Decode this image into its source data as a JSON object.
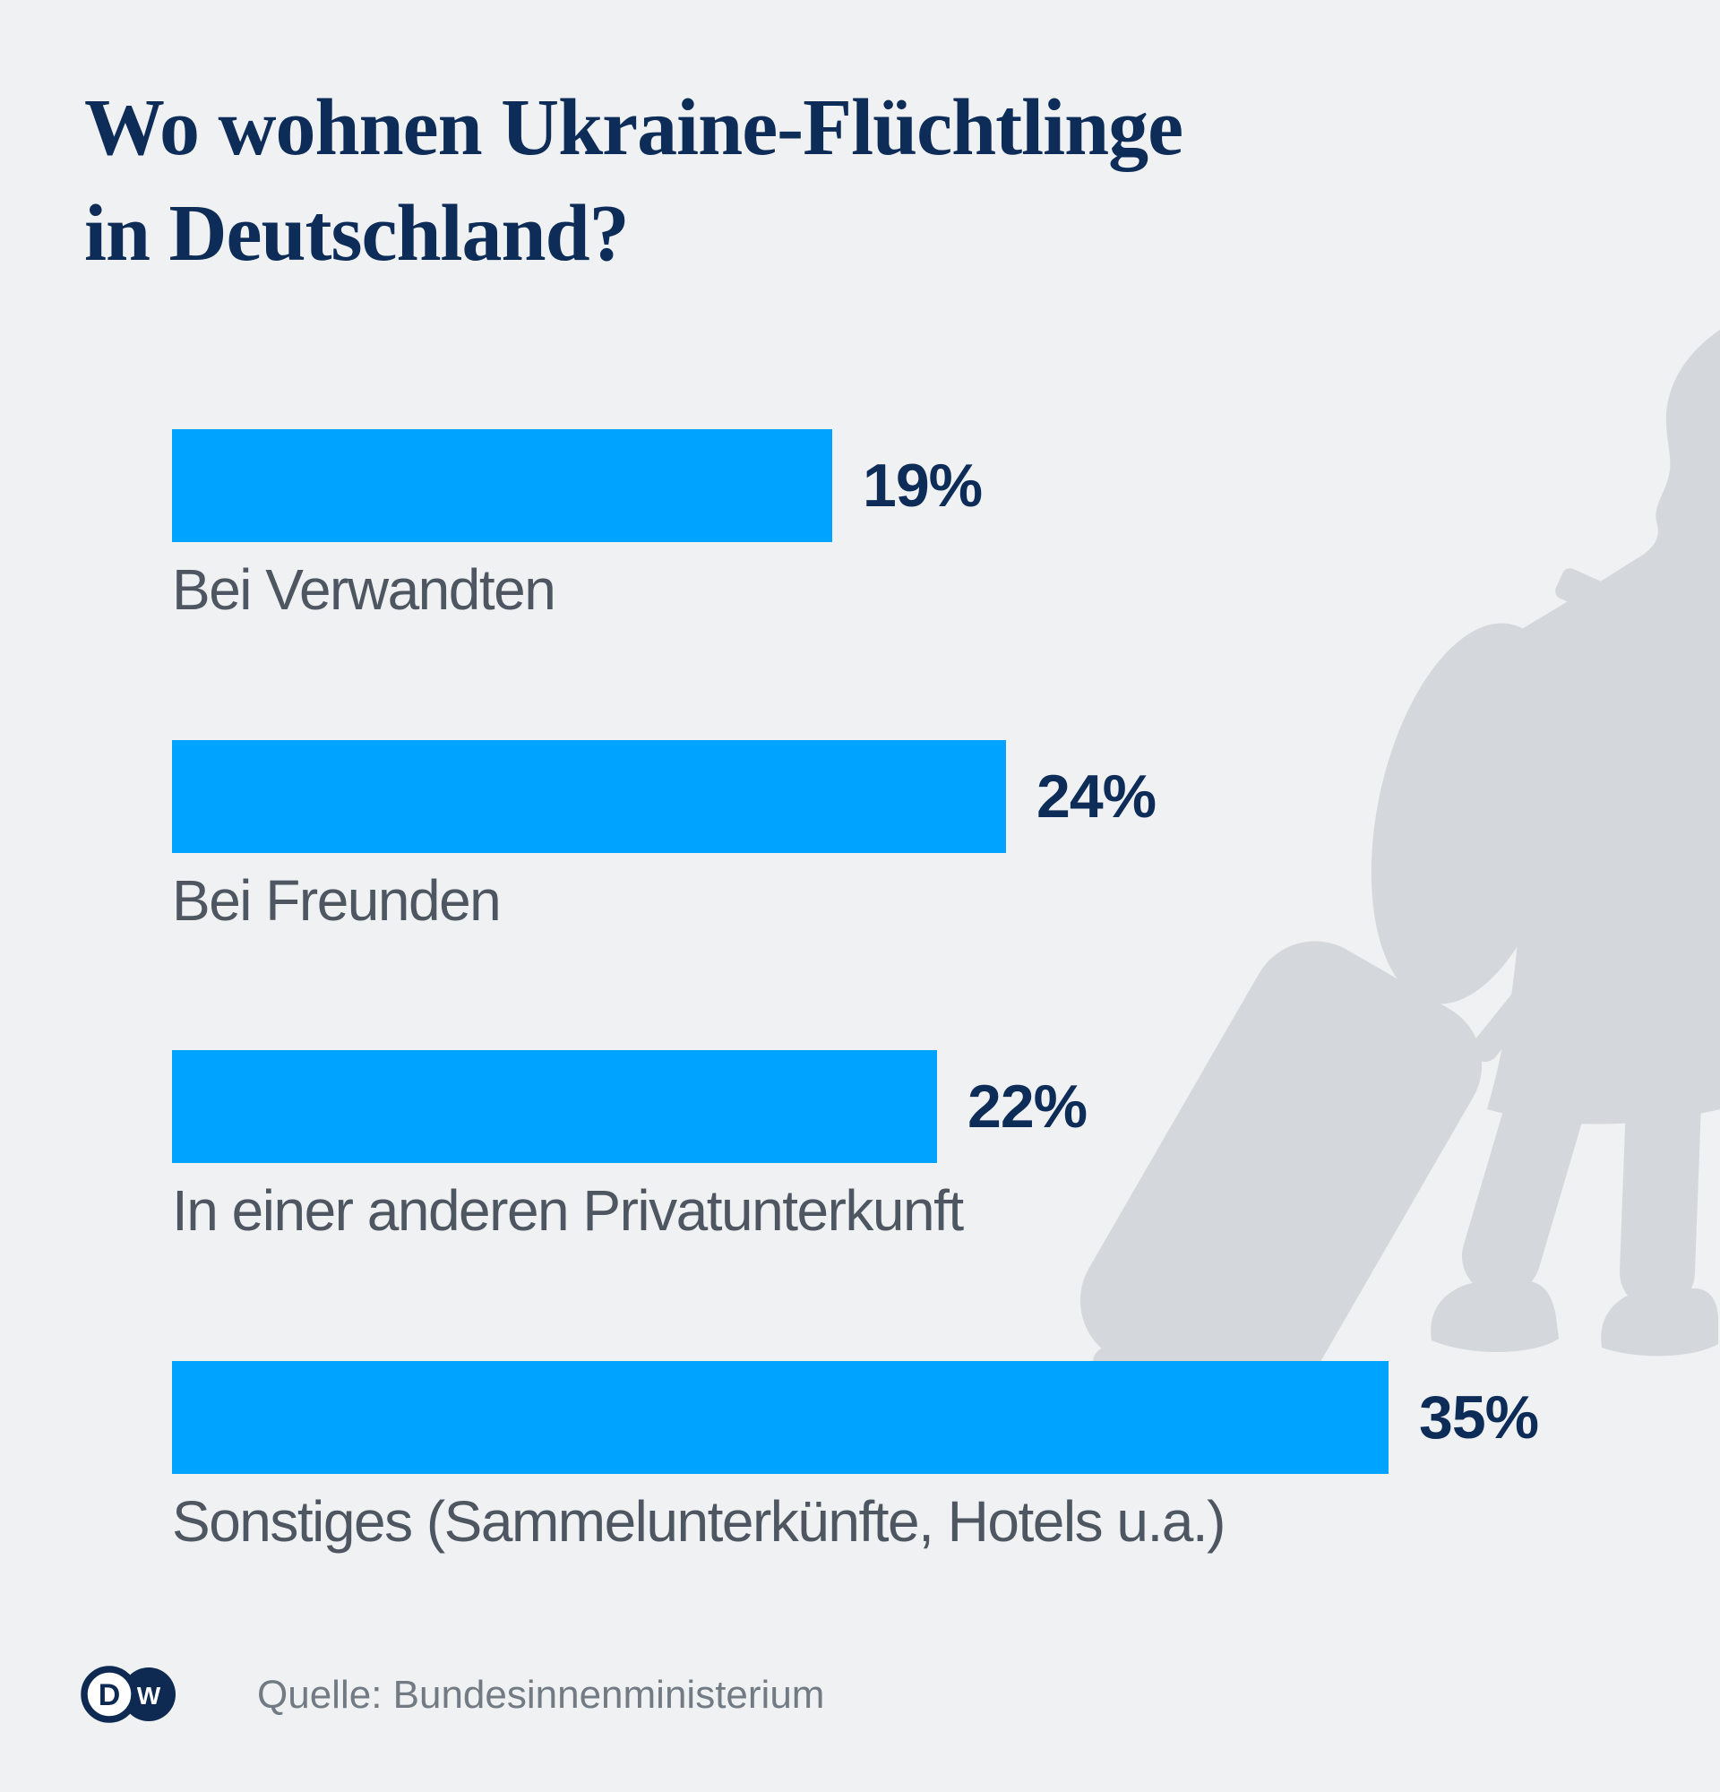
{
  "title": {
    "line1": "Wo wohnen Ukraine-Flüchtlinge",
    "line2": "in Deutschland?"
  },
  "chart_data": {
    "type": "bar",
    "orientation": "horizontal",
    "title": "Wo wohnen Ukraine-Flüchtlinge in Deutschland?",
    "categories": [
      "Bei Verwandten",
      "Bei Freunden",
      "In einer anderen Privatunterkunft",
      "Sonstiges (Sammelunterkünfte, Hotels u.a.)"
    ],
    "values": [
      19,
      24,
      22,
      35
    ],
    "value_labels": [
      "19%",
      "24%",
      "22%",
      "35%"
    ],
    "xlabel": "",
    "ylabel": "",
    "xlim": [
      0,
      36
    ],
    "grid": false,
    "legend": null,
    "bar_color": "#00a3ff",
    "source": "Quelle: Bundesinnenministerium"
  },
  "footer": {
    "source_label": "Quelle: Bundesinnenministerium",
    "logo": {
      "name": "dw-logo",
      "left_letter": "D",
      "right_letter": "W"
    }
  },
  "decor": {
    "silhouette": "refugee-with-backpack-and-suitcase"
  },
  "colors": {
    "background": "#eff1f3",
    "silhouette": "#d4d8dc",
    "bar": "#00a3ff",
    "navy": "#0e2c58",
    "category_label": "#4d5661",
    "source_text": "#727b84",
    "logo_navy": "#0f2a52"
  }
}
